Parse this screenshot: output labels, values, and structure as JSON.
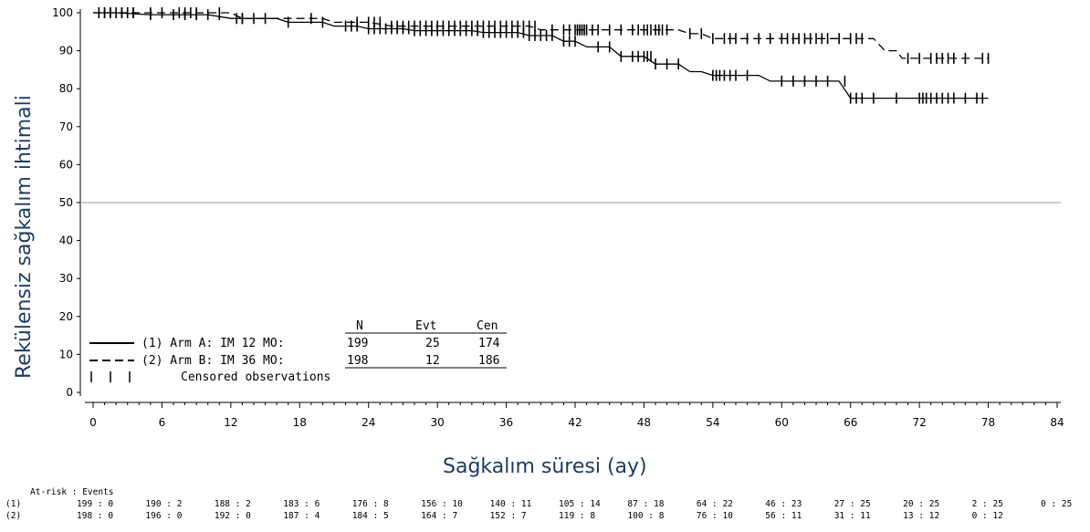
{
  "chart_data": {
    "type": "line",
    "title": "",
    "xlabel": "Sağkalım süresi (ay)",
    "ylabel": "Rekülensiz sağkalım ihtimali",
    "xlim": [
      0,
      84
    ],
    "ylim": [
      0,
      100
    ],
    "x_ticks": [
      "0",
      "6",
      "12",
      "18",
      "24",
      "30",
      "36",
      "42",
      "48",
      "54",
      "60",
      "66",
      "72",
      "78",
      "84"
    ],
    "y_ticks": [
      "0",
      "10",
      "20",
      "30",
      "40",
      "50",
      "60",
      "70",
      "80",
      "90",
      "100"
    ],
    "reference_line_y": 50,
    "series": [
      {
        "name": "(1) Arm A: IM 12 MO:",
        "style": "solid",
        "steps": [
          [
            0,
            100
          ],
          [
            2,
            100
          ],
          [
            5,
            99.5
          ],
          [
            10,
            99.5
          ],
          [
            12,
            98.5
          ],
          [
            16,
            98.5
          ],
          [
            17,
            97.5
          ],
          [
            20,
            97.5
          ],
          [
            21,
            96.5
          ],
          [
            23,
            96.5
          ],
          [
            24,
            95.8
          ],
          [
            27,
            95.8
          ],
          [
            28,
            95.3
          ],
          [
            33,
            95.3
          ],
          [
            34,
            94.8
          ],
          [
            37,
            94.8
          ],
          [
            38,
            94
          ],
          [
            40,
            94
          ],
          [
            41,
            92.5
          ],
          [
            42,
            92.5
          ],
          [
            43,
            91
          ],
          [
            45,
            91
          ],
          [
            46,
            88.5
          ],
          [
            48,
            88.5
          ],
          [
            49,
            86.5
          ],
          [
            51,
            86.5
          ],
          [
            52,
            84.5
          ],
          [
            53,
            84.5
          ],
          [
            54,
            83.5
          ],
          [
            58,
            83.5
          ],
          [
            59,
            82
          ],
          [
            65,
            82
          ],
          [
            66,
            77.5
          ],
          [
            78,
            77.5
          ]
        ],
        "censored_x": [
          0.5,
          1,
          1.5,
          2.5,
          3.5,
          5,
          7,
          8,
          9,
          10,
          11,
          12.5,
          13,
          17,
          20,
          22,
          22.5,
          23,
          24,
          24.5,
          25,
          25.5,
          26,
          26.5,
          27,
          27.5,
          28,
          28.5,
          29,
          29.5,
          30,
          30.5,
          31,
          31.5,
          32,
          32.5,
          33,
          33.5,
          34,
          34.5,
          35,
          35.5,
          36,
          36.5,
          37,
          37.5,
          38,
          38.5,
          39,
          39.5,
          40,
          41,
          41.5,
          42,
          44,
          45,
          46,
          47,
          47.5,
          48,
          48.3,
          48.6,
          49,
          50,
          51,
          54,
          54.3,
          54.6,
          55,
          55.5,
          56,
          57,
          60,
          61,
          62,
          63,
          64,
          65.5,
          66,
          66.5,
          67,
          68,
          70,
          72,
          72.3,
          72.6,
          73,
          73.5,
          74,
          74.5,
          75,
          76,
          77,
          77.5
        ]
      },
      {
        "name": "(2) Arm B: IM 36 MO:",
        "style": "dashed",
        "steps": [
          [
            0,
            100
          ],
          [
            12,
            100
          ],
          [
            13,
            98.5
          ],
          [
            20,
            98.5
          ],
          [
            21,
            97.5
          ],
          [
            24,
            97.5
          ],
          [
            26,
            96.5
          ],
          [
            38,
            96.5
          ],
          [
            39,
            95.5
          ],
          [
            51,
            95.5
          ],
          [
            52,
            94.5
          ],
          [
            53,
            94.5
          ],
          [
            54,
            93.2
          ],
          [
            68,
            93.2
          ],
          [
            69,
            90
          ],
          [
            70,
            90
          ],
          [
            70.5,
            88
          ],
          [
            78,
            88
          ]
        ],
        "censored_x": [
          0.5,
          1,
          1.5,
          2,
          2.5,
          3,
          3.5,
          5,
          6,
          7.5,
          8,
          8.5,
          9,
          11,
          13,
          14,
          15,
          19,
          23,
          24,
          24.5,
          25,
          26,
          26.5,
          27,
          27.5,
          28,
          28.5,
          29,
          29.5,
          30,
          30.5,
          31,
          31.5,
          32,
          32.5,
          33,
          33.5,
          34,
          34.5,
          35,
          35.5,
          36,
          36.5,
          37,
          37.5,
          38,
          38.5,
          40,
          41,
          41.5,
          42,
          42.2,
          42.4,
          42.6,
          42.8,
          43,
          43.5,
          44,
          45,
          46,
          47,
          47.5,
          48,
          48.3,
          48.6,
          49,
          49.3,
          49.6,
          50,
          52,
          53,
          54,
          55,
          55.5,
          56,
          57,
          58,
          59,
          60,
          60.5,
          61,
          61.5,
          62,
          62.5,
          63,
          63.5,
          64,
          65,
          66,
          66.5,
          67,
          71,
          72,
          73,
          73.5,
          74,
          74.5,
          75,
          76,
          77.5,
          78
        ]
      }
    ],
    "legend": {
      "headers": [
        "N",
        "Evt",
        "Cen"
      ],
      "rows": [
        {
          "label": "(1) Arm A: IM 12 MO:",
          "n": "199",
          "evt": "25",
          "cen": "174"
        },
        {
          "label": "(2) Arm B: IM 36 MO:",
          "n": "198",
          "evt": "12",
          "cen": "186"
        }
      ],
      "censored_label": "Censored observations"
    },
    "at_risk": {
      "header": "At-risk : Events",
      "row1_label": "(1)",
      "row2_label": "(2)",
      "row1": [
        "199 : 0",
        "190 : 2",
        "188 : 2",
        "183 : 6",
        "176 : 8",
        "156 : 10",
        "140 : 11",
        "105 : 14",
        "87 : 18",
        "64 : 22",
        "46 : 23",
        "27 : 25",
        "20 : 25",
        "2 : 25",
        "0 : 25"
      ],
      "row2": [
        "198 : 0",
        "196 : 0",
        "192 : 0",
        "187 : 4",
        "184 : 5",
        "164 : 7",
        "152 : 7",
        "119 : 8",
        "100 : 8",
        "76 : 10",
        "56 : 11",
        "31 : 11",
        "13 : 12",
        "0 : 12"
      ]
    }
  }
}
